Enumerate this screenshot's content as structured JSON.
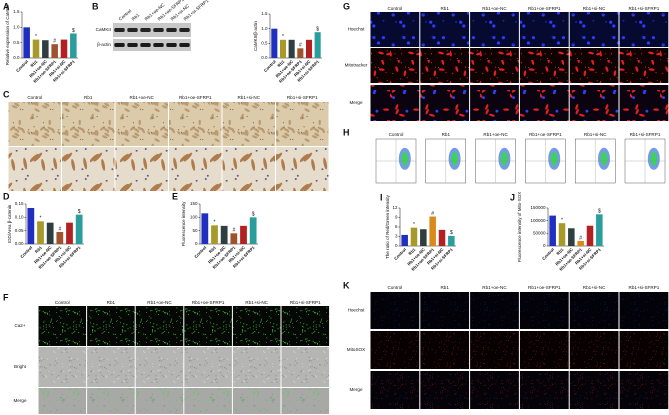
{
  "groups": [
    "Control",
    "Rb1",
    "Rb1+oe-NC",
    "Rb1+oe-SFRP1",
    "Rb1+si-NC",
    "Rb1+si-SFRP1"
  ],
  "panels": [
    "A",
    "B",
    "C",
    "D",
    "E",
    "F",
    "G",
    "H",
    "I",
    "J",
    "K"
  ],
  "blot_rows": [
    "CaMKII",
    "β-actin"
  ],
  "F_rows": [
    "Ca2+",
    "Bright",
    "Merge"
  ],
  "G_rows": [
    "Hoechst",
    "Mitotracker",
    "Merge"
  ],
  "K_rows": [
    "Hoechst",
    "MitoSOX",
    "Merge"
  ],
  "chart_data": [
    {
      "type": "bar",
      "ylabel": "Relative expression of CaMKII",
      "categories": [
        "Control",
        "Rb1",
        "Rb1+oe-NC",
        "Rb1+oe-SFRP1",
        "Rb1+si-NC",
        "Rb1+si-SFRP1"
      ],
      "values": [
        1.0,
        0.6,
        0.58,
        0.45,
        0.6,
        0.8
      ],
      "annotations": [
        null,
        "*",
        null,
        "#",
        null,
        "$"
      ],
      "colors": [
        "#1f2fbf",
        "#a89a2a",
        "#2f3f3f",
        "#a0522d",
        "#b22222",
        "#2a9d9d"
      ],
      "ylim": [
        0,
        1.5
      ],
      "yticks": [
        {
          "value": 0,
          "label": "0.0"
        },
        {
          "value": 0.5,
          "label": "0.5"
        },
        {
          "value": 1,
          "label": "1.0"
        },
        {
          "value": 1.5,
          "label": "1.5"
        }
      ]
    },
    {
      "type": "bar",
      "ylabel": "CaMKII/β-actin",
      "categories": [
        "Control",
        "Rb1",
        "Rb1+oe-NC",
        "Rb1+oe-SFRP1",
        "Rb1+si-NC",
        "Rb1+si-SFRP1"
      ],
      "values": [
        1.0,
        0.62,
        0.62,
        0.33,
        0.62,
        0.88
      ],
      "annotations": [
        null,
        "*",
        null,
        "#",
        null,
        "$"
      ],
      "colors": [
        "#1f2fbf",
        "#a89a2a",
        "#2f3f3f",
        "#a0522d",
        "#b22222",
        "#2a9d9d"
      ],
      "ylim": [
        0,
        1.5
      ],
      "yticks": [
        {
          "value": 0,
          "label": "0.0"
        },
        {
          "value": 0.5,
          "label": "0.5"
        },
        {
          "value": 1,
          "label": "1.0"
        },
        {
          "value": 1.5,
          "label": "1.5"
        }
      ]
    },
    {
      "type": "bar",
      "ylabel": "IOD/Area β-catenin",
      "categories": [
        "Control",
        "Rb1",
        "Rb1+oe-NC",
        "Rb1+oe-SFRP1",
        "Rb1+si-NC",
        "Rb1+si-SFRP1"
      ],
      "values": [
        0.135,
        0.085,
        0.08,
        0.045,
        0.08,
        0.11
      ],
      "annotations": [
        null,
        "*",
        null,
        "#",
        null,
        "$"
      ],
      "colors": [
        "#1f2fbf",
        "#a89a2a",
        "#2f3f3f",
        "#a0522d",
        "#b22222",
        "#2a9d9d"
      ],
      "ylim": [
        0,
        0.15
      ],
      "yticks": [
        {
          "value": 0,
          "label": "0.00"
        },
        {
          "value": 0.05,
          "label": "0.05"
        },
        {
          "value": 0.1,
          "label": "0.10"
        },
        {
          "value": 0.15,
          "label": "0.15"
        }
      ]
    },
    {
      "type": "bar",
      "ylabel": "Fluorescence intensity",
      "categories": [
        "Control",
        "Rb1",
        "Rb1+oe-NC",
        "Rb1+oe-SFRP1",
        "Rb1+si-NC",
        "Rb1+si-SFRP1"
      ],
      "values": [
        115,
        70,
        68,
        40,
        68,
        100
      ],
      "annotations": [
        null,
        "*",
        null,
        "#",
        null,
        "$"
      ],
      "colors": [
        "#1f2fbf",
        "#a89a2a",
        "#2f3f3f",
        "#a0522d",
        "#b22222",
        "#2a9d9d"
      ],
      "ylim": [
        0,
        150
      ],
      "yticks": [
        0,
        50,
        100,
        150
      ]
    },
    {
      "type": "bar",
      "ylabel": "The ratio of Red/Green intensity",
      "categories": [
        "Control",
        "Rb1",
        "Rb1+oe-NC",
        "Rb1+oe-SFRP1",
        "Rb1+si-NC",
        "Rb1+si-SFRP1"
      ],
      "values": [
        3.5,
        5.8,
        5.3,
        9.3,
        5.1,
        3.2
      ],
      "annotations": [
        null,
        "*",
        null,
        "#",
        null,
        "$"
      ],
      "colors": [
        "#1f2fbf",
        "#a89a2a",
        "#2f3f3f",
        "#d98a1a",
        "#b22222",
        "#2a9d9d"
      ],
      "ylim": [
        0,
        12
      ],
      "yticks": [
        0,
        3,
        6,
        9,
        12
      ]
    },
    {
      "type": "bar",
      "ylabel": "Fluorescence intensity of Mito-SOX",
      "categories": [
        "Control",
        "Rb1",
        "Rb1+oe-NC",
        "Rb1+oe-SFRP1",
        "Rb1+si-NC",
        "Rb1+si-SFRP1"
      ],
      "values": [
        120000,
        90000,
        70000,
        20000,
        80000,
        125000
      ],
      "annotations": [
        null,
        "*",
        null,
        "#",
        null,
        "$"
      ],
      "colors": [
        "#1f2fbf",
        "#a89a2a",
        "#2f3f3f",
        "#d98a1a",
        "#b22222",
        "#2a9d9d"
      ],
      "ylim": [
        0,
        150000
      ],
      "yticks": [
        0,
        50000,
        100000,
        150000
      ]
    }
  ]
}
